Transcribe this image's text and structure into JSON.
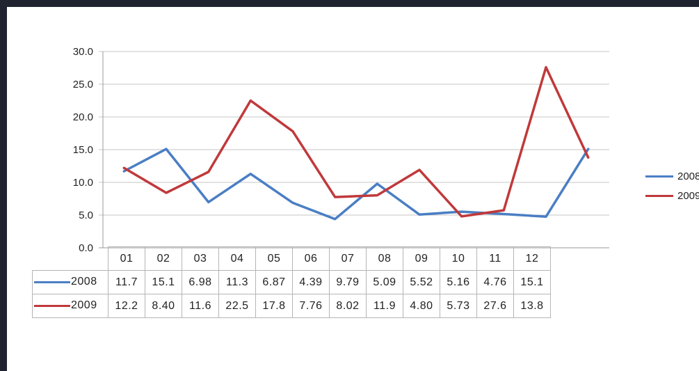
{
  "chart_data": {
    "type": "line",
    "categories": [
      "01",
      "02",
      "03",
      "04",
      "05",
      "06",
      "07",
      "08",
      "09",
      "10",
      "11",
      "12"
    ],
    "series": [
      {
        "name": "2008",
        "color": "#4a7ec4",
        "values": [
          11.7,
          15.1,
          6.98,
          11.3,
          6.87,
          4.39,
          9.79,
          5.09,
          5.52,
          5.16,
          4.76,
          15.1
        ],
        "labels": [
          "11.7",
          "15.1",
          "6.98",
          "11.3",
          "6.87",
          "4.39",
          "9.79",
          "5.09",
          "5.52",
          "5.16",
          "4.76",
          "15.1"
        ]
      },
      {
        "name": "2009",
        "color": "#c0393b",
        "values": [
          12.2,
          8.4,
          11.6,
          22.5,
          17.8,
          7.76,
          8.02,
          11.9,
          4.8,
          5.73,
          27.6,
          13.8
        ],
        "labels": [
          "12.2",
          "8.40",
          "11.6",
          "22.5",
          "17.8",
          "7.76",
          "8.02",
          "11.9",
          "4.80",
          "5.73",
          "27.6",
          "13.8"
        ]
      }
    ],
    "yticks": [
      "0.0",
      "5.0",
      "10.0",
      "15.0",
      "20.0",
      "25.0",
      "30.0"
    ],
    "ylim": [
      0,
      30
    ],
    "grid": true,
    "legend_position": "right",
    "data_table": true
  }
}
